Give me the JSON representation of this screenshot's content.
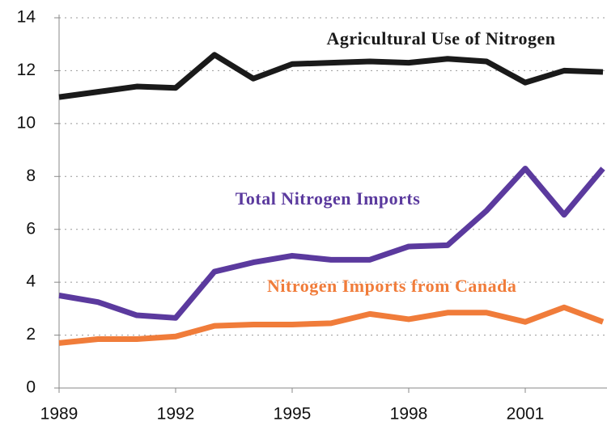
{
  "chart_data": {
    "type": "line",
    "x": [
      1989,
      1990,
      1991,
      1992,
      1993,
      1994,
      1995,
      1996,
      1997,
      1998,
      1999,
      2000,
      2001,
      2002,
      2003
    ],
    "series": [
      {
        "name": "Agricultural Use of Nitrogen",
        "color": "#1a1a1a",
        "values": [
          11.0,
          11.2,
          11.4,
          11.35,
          12.6,
          11.7,
          12.25,
          12.3,
          12.35,
          12.3,
          12.45,
          12.35,
          11.55,
          12.0,
          11.95
        ]
      },
      {
        "name": "Total Nitrogen Imports",
        "color": "#5b3a9e",
        "values": [
          3.5,
          3.25,
          2.75,
          2.65,
          4.4,
          4.75,
          5.0,
          4.85,
          4.85,
          5.35,
          5.4,
          6.7,
          8.3,
          6.55,
          8.3
        ]
      },
      {
        "name": "Nitrogen Imports from Canada",
        "color": "#f07c3a",
        "values": [
          1.7,
          1.85,
          1.85,
          1.95,
          2.35,
          2.4,
          2.4,
          2.45,
          2.8,
          2.6,
          2.85,
          2.85,
          2.5,
          3.05,
          2.5
        ]
      }
    ],
    "xlim": [
      1989,
      2003
    ],
    "xticks": [
      1989,
      1992,
      1995,
      1998,
      2001
    ],
    "ylim": [
      0,
      14
    ],
    "yticks": [
      0,
      2,
      4,
      6,
      8,
      10,
      12,
      14
    ],
    "grid": true
  }
}
